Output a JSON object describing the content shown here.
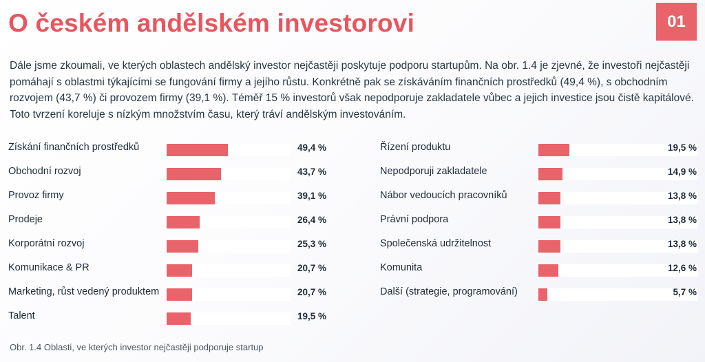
{
  "header": {
    "title": "O českém andělském investorovi",
    "number": "01"
  },
  "intro_text": "Dále jsme zkoumali, ve kterých oblastech andělský investor nejčastěji poskytuje podporu startupům. Na obr. 1.4 je zjevné, že investoři nejčastěji pomáhají s oblastmi týkajícími se fungování firmy a jejího růstu. Konkrétně pak se získáváním finančních prostředků (49,4 %), s obchodním rozvojem (43,7 %) či provozem firmy (39,1 %). Téměř 15 % investorů však nepodporuje zakladatele vůbec a jejich investice jsou čistě kapitálové. Toto tvrzení koreluje s nízkým množstvím času, který tráví andělským investováním.",
  "chart_data": {
    "type": "bar",
    "orientation": "horizontal",
    "xlim": [
      0,
      100
    ],
    "unit": "%",
    "bar_color": "#e8646a",
    "track_color": "#ffffff",
    "columns": [
      {
        "categories": [
          "Získání finančních prostředků",
          "Obchodní rozvoj",
          "Provoz firmy",
          "Prodeje",
          "Korporátní rozvoj",
          "Komunikace & PR",
          "Marketing, růst vedený produktem",
          "Talent"
        ],
        "values": [
          49.4,
          43.7,
          39.1,
          26.4,
          25.3,
          20.7,
          20.7,
          19.5
        ],
        "value_labels": [
          "49,4 %",
          "43,7 %",
          "39,1 %",
          "26,4 %",
          "25,3 %",
          "20,7 %",
          "20,7 %",
          "19,5 %"
        ]
      },
      {
        "categories": [
          "Řízení produktu",
          "Nepodporuji zakladatele",
          "Nábor vedoucích pracovníků",
          "Právní podpora",
          "Společenská udržitelnost",
          "Komunita",
          "Další (strategie, programování)"
        ],
        "values": [
          19.5,
          14.9,
          13.8,
          13.8,
          13.8,
          12.6,
          5.7
        ],
        "value_labels": [
          "19,5 %",
          "14,9 %",
          "13,8 %",
          "13,8 %",
          "13,8 %",
          "12,6 %",
          "5,7 %"
        ]
      }
    ]
  },
  "caption": "Obr. 1.4 Oblasti, ve kterých investor nejčastěji podporuje startup"
}
